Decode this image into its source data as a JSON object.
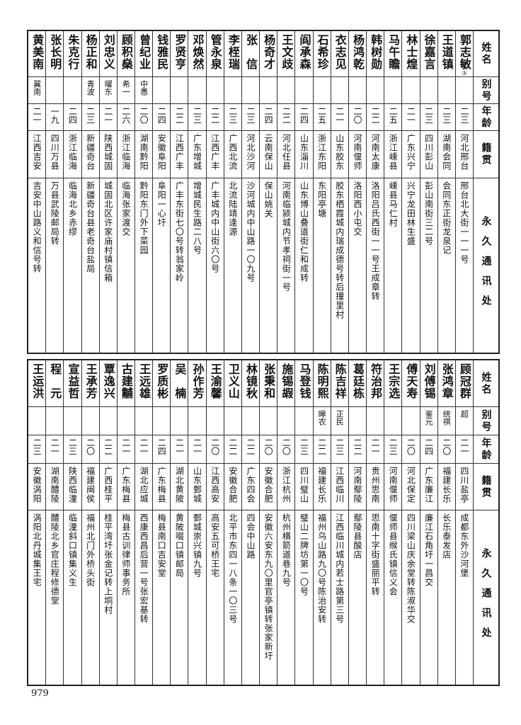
{
  "headers": {
    "name": "姓名",
    "alias": "别号",
    "age": "年龄",
    "origin": "籍贯",
    "address": "永久通讯处"
  },
  "top_table": [
    {
      "name": "郭志敏",
      "note": "③",
      "alias": "",
      "age": "二三",
      "origin": "河北邢台",
      "address": "邢台北大街一一一号"
    },
    {
      "name": "王道镇",
      "alias": "",
      "age": "二三",
      "origin": "湖南会同",
      "address": "会同东正街龙泉记"
    },
    {
      "name": "徐嘉言",
      "alias": "",
      "age": "二三",
      "origin": "四川彭山",
      "address": "彭山南街三二号"
    },
    {
      "name": "林士煌",
      "alias": "",
      "age": "二一",
      "origin": "广东兴宁",
      "address": "兴宁龙田林生盛"
    },
    {
      "name": "马午瞻",
      "alias": "",
      "age": "二五",
      "origin": "浙江嵊县",
      "address": "嵊县马仁村"
    },
    {
      "name": "韩树勋",
      "alias": "",
      "age": "二二",
      "origin": "河南太康",
      "address": "洛阳吕氏西街一一号王成章转"
    },
    {
      "name": "杨鸿乾",
      "alias": "",
      "age": "二〇",
      "origin": "河南偃师",
      "address": "洛阳西小屯交"
    },
    {
      "name": "衣志见",
      "alias": "",
      "age": "二一",
      "origin": "山东胶东",
      "address": "胶东栖霞城内瑞成德号转后撞里村"
    },
    {
      "name": "石希珍",
      "alias": "",
      "age": "二五",
      "origin": "浙江东阳",
      "address": "东阳亭塘"
    },
    {
      "name": "阎承森",
      "alias": "",
      "age": "二四",
      "origin": "山东淄川",
      "address": "山东博山叠道街仁和成转"
    },
    {
      "name": "王文歧",
      "alias": "",
      "age": "二二",
      "origin": "河北任县",
      "address": "河南临颍城内节孝祠街一号"
    },
    {
      "name": "杨奇才",
      "alias": "",
      "age": "二四",
      "origin": "云南保山",
      "address": "保山姚关"
    },
    {
      "name": "张　信",
      "alias": "",
      "age": "二三",
      "origin": "河北沙河",
      "address": "沙河城内中山路一〇九号"
    },
    {
      "name": "李桎瑞",
      "alias": "",
      "age": "二三",
      "origin": "广西北流",
      "address": "北流陆靖逢源"
    },
    {
      "name": "管永泉",
      "alias": "",
      "age": "二二",
      "origin": "江西广丰",
      "address": "广丰城内中山街六〇号"
    },
    {
      "name": "邓焕然",
      "alias": "",
      "age": "二三",
      "origin": "广东增城",
      "address": "增城民生路二八号"
    },
    {
      "name": "罗贤亨",
      "alias": "",
      "age": "二二",
      "origin": "江西广丰",
      "address": "广丰东街七〇号转翁家岭"
    },
    {
      "name": "钱雅民",
      "alias": "",
      "age": "二四",
      "origin": "安徽阜阳",
      "address": "阜阳一心圩"
    },
    {
      "name": "曾纪业",
      "alias": "中愚",
      "age": "二〇",
      "origin": "湖南黔阳",
      "address": "黔阳东门外下菜园"
    },
    {
      "name": "顾积燊",
      "alias": "希一",
      "age": "二六",
      "origin": "浙江临海",
      "address": "临海张家渡交"
    },
    {
      "name": "刘忠义",
      "alias": "曜东",
      "age": "二一",
      "origin": "陕西城固",
      "address": "城固北区许家庙村镇信箱"
    },
    {
      "name": "杨正和",
      "alias": "青波",
      "age": "二三",
      "origin": "新疆奇台",
      "address": "新疆奇台县老奇台盐局"
    },
    {
      "name": "朱克行",
      "alias": "",
      "age": "二四",
      "origin": "浙江临海",
      "address": "临海北乡赤缪"
    },
    {
      "name": "张长明",
      "alias": "",
      "age": "一九",
      "origin": "四川万县",
      "address": "万县武陵邮局转"
    },
    {
      "name": "黄美南",
      "alias": "翼南",
      "age": "二一",
      "origin": "江西吉安",
      "address": "吉安中山路义和信号转"
    }
  ],
  "bottom_table": [
    {
      "name": "顾冠群",
      "alias": "超",
      "age": "二一",
      "origin": "四川盐亭",
      "address": "成都东外沙河堡"
    },
    {
      "name": "张鸿章",
      "alias": "统祺",
      "age": "二〇",
      "origin": "福建长乐",
      "address": "长乐泰发店"
    },
    {
      "name": "刘傅锡",
      "alias": "鉴元",
      "age": "二四",
      "origin": "广东廉江",
      "address": "廉江石角圩一昌交"
    },
    {
      "name": "傅天寿",
      "alias": "",
      "age": "二〇",
      "origin": "河北保定",
      "address": "四川梁山庆余堂转陈淑华交"
    },
    {
      "name": "王宗选",
      "alias": "",
      "age": "二三",
      "origin": "河南偃师",
      "address": "偃师县缑氏镇信义会"
    },
    {
      "name": "符治邦",
      "alias": "",
      "age": "二一",
      "origin": "贵州思南",
      "address": "思南十字街盛丽平转"
    },
    {
      "name": "葛廷栋",
      "alias": "",
      "age": "二二",
      "origin": "河南鄢陵",
      "address": "鄢陵县酸店"
    },
    {
      "name": "陈吉祥",
      "alias": "正民",
      "age": "二三",
      "origin": "江西临川",
      "address": "江西临川城内若士路第三号"
    },
    {
      "name": "陈明熙",
      "alias": "皞农",
      "age": "二二",
      "origin": "福建长乐",
      "address": "福州乌山路九〇号陈治安转"
    },
    {
      "name": "马登钱",
      "alias": "",
      "age": "二三",
      "origin": "四川璧山",
      "address": "璧山二牌坊第一〇号"
    },
    {
      "name": "施锡嘏",
      "alias": "",
      "age": "二〇",
      "origin": "浙江杭州",
      "address": "杭州横箭道巷九号"
    },
    {
      "name": "张秉和",
      "alias": "",
      "age": "二〇",
      "origin": "安徽合肥",
      "address": "安徽六安东九〇里官亭镇转张家新圩"
    },
    {
      "name": "林镜秋",
      "alias": "",
      "age": "二二",
      "origin": "广东四会",
      "address": "四会中山路"
    },
    {
      "name": "卫义山",
      "alias": "",
      "age": "二二",
      "origin": "安徽合肥",
      "address": "北平市东四一八条一〇三号"
    },
    {
      "name": "王渝馨",
      "alias": "",
      "age": "二〇",
      "origin": "江西高安",
      "address": "高安五可桥王宅"
    },
    {
      "name": "孙作芳",
      "alias": "",
      "age": "二一",
      "origin": "山东鄄城",
      "address": "鄄城崇兴镇九号"
    },
    {
      "name": "吴　楠",
      "alias": "",
      "age": "二一",
      "origin": "湖北黄陂",
      "address": "黄陂啜口镇邮局"
    },
    {
      "name": "罗质彬",
      "alias": "",
      "age": "二四",
      "origin": "广东梅县",
      "address": "梅县南口吉安堂"
    },
    {
      "name": "王远雄",
      "alias": "",
      "age": "二一",
      "origin": "湖北应城",
      "address": "西康西昌后营一号张宏基转"
    },
    {
      "name": "古建黼",
      "alias": "",
      "age": "二一",
      "origin": "广东梅县",
      "address": "梅县古训律师事务所"
    },
    {
      "name": "覃逸兴",
      "alias": "",
      "age": "二二",
      "origin": "广西桂平",
      "address": "桂平湾圩张金记转上垌村"
    },
    {
      "name": "王承芳",
      "alias": "",
      "age": "二〇",
      "origin": "福建闽侯",
      "address": "福州北门外桥头街"
    },
    {
      "name": "宣益哲",
      "alias": "",
      "age": "二三",
      "origin": "陕西临潼",
      "address": "临潼斜口镇集义生"
    },
    {
      "name": "程　元",
      "alias": "",
      "age": "二一",
      "origin": "湖南醴陵",
      "address": "醴陵北乡官庄程修德堂"
    },
    {
      "name": "王运洪",
      "alias": "",
      "age": "二三",
      "origin": "安徽涡阳",
      "address": "涡阳北丹城集王宅"
    }
  ],
  "page_number": "979"
}
